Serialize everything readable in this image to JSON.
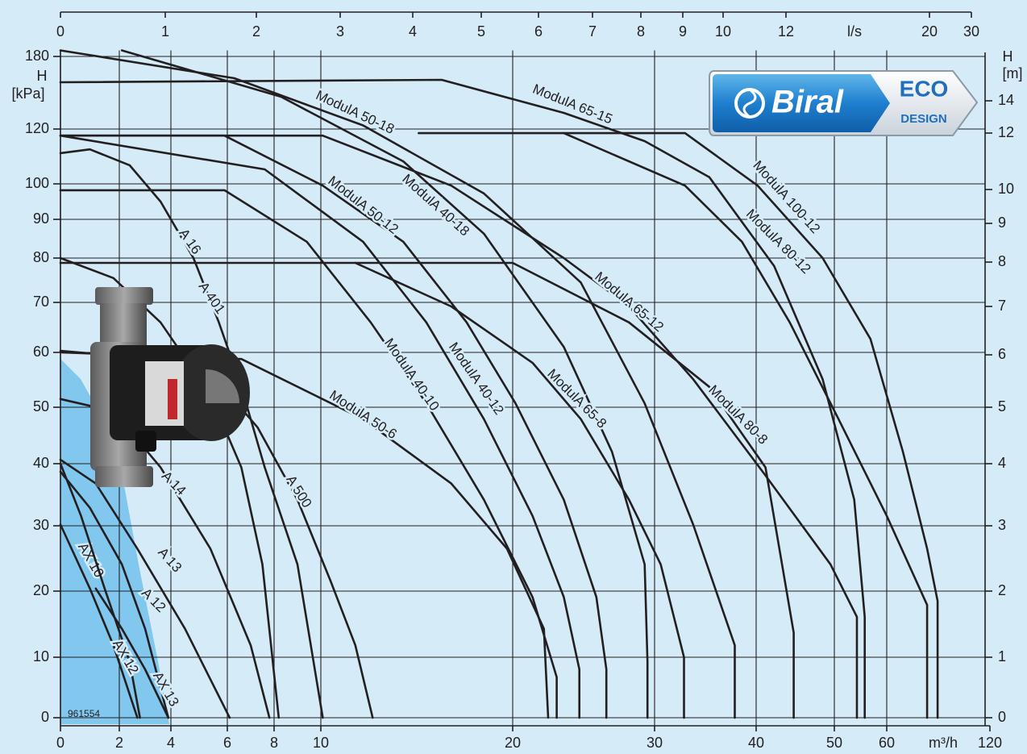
{
  "chart_data": {
    "type": "line",
    "color": "#231f20",
    "grid": true,
    "x_label": "m³/h",
    "x2_label": "l/s",
    "y_label": [
      "H",
      "[kPa]"
    ],
    "y2_label": [
      "H",
      "[m]"
    ],
    "xlim": [
      0,
      120
    ],
    "xticks": [
      0,
      2,
      4,
      6,
      8,
      10,
      20,
      30,
      40,
      50,
      60,
      120
    ],
    "x2lim": [
      0,
      30
    ],
    "x2ticks": [
      0,
      1,
      2,
      3,
      4,
      5,
      6,
      7,
      8,
      9,
      10,
      12,
      20,
      30
    ],
    "ylim": [
      0,
      185
    ],
    "yticks": [
      0,
      10,
      20,
      30,
      40,
      50,
      60,
      70,
      80,
      90,
      100,
      120,
      180
    ],
    "y2lim": [
      0,
      17
    ],
    "y2ticks": [
      0,
      1,
      2,
      3,
      4,
      5,
      6,
      7,
      8,
      9,
      10,
      12,
      14
    ],
    "annotations": [
      "961554"
    ],
    "series": [
      {
        "name": "ModulA 50-18",
        "x": [
          0,
          6.3,
          12.2,
          18.5,
          24.8,
          29.3,
          33.8,
          37.9,
          37.9
        ],
        "y": [
          185,
          162,
          123,
          97.3,
          74.5,
          50.7,
          30.2,
          11.8,
          0
        ]
      },
      {
        "name": "ModulA 65-15",
        "x": [
          0,
          16.3,
          23.6,
          29.3,
          35.4,
          42.3,
          48.5,
          53.8,
          55.8,
          55.8
        ],
        "y": [
          158.7,
          160.7,
          133.3,
          115.6,
          102.4,
          78.2,
          55.1,
          34.2,
          16.1,
          0
        ]
      },
      {
        "name": "ModulA 100-12",
        "x": [
          15.1,
          33.0,
          40.2,
          48.5,
          56.9,
          69.4,
          83.5,
          89.6,
          89.6
        ],
        "y": [
          118.5,
          118.5,
          99.5,
          80,
          62.7,
          42.1,
          26.5,
          18.5,
          0
        ]
      },
      {
        "name": "ModulA 80-12",
        "x": [
          23.6,
          33.0,
          38.6,
          44.3,
          50.8,
          60,
          83.5,
          83.5
        ],
        "y": [
          118.5,
          99.5,
          84.2,
          66,
          47.9,
          31.6,
          17.9,
          0
        ]
      },
      {
        "name": "ModulA 65-12",
        "x": [
          0,
          10.1,
          16.8,
          23.6,
          28.2,
          33.8,
          41.2,
          49.5,
          54.3,
          54.3
        ],
        "y": [
          117.6,
          117.6,
          99.5,
          80,
          69.2,
          55.1,
          38.1,
          24.1,
          16.1,
          0
        ]
      },
      {
        "name": "ModulA 40-18",
        "x": [
          2.1,
          8.3,
          14.3,
          18.5,
          23.6,
          27.0,
          29.3,
          29.5,
          29.5
        ],
        "y": [
          185,
          146.7,
          108.2,
          86.3,
          61.1,
          42.1,
          24.1,
          9.3,
          0
        ]
      },
      {
        "name": "ModulA 50-12",
        "x": [
          0,
          5.9,
          10.1,
          14.3,
          17.6,
          20.2,
          23.6,
          25.9,
          26.6,
          26.6
        ],
        "y": [
          117.6,
          117.6,
          99.5,
          84.2,
          66,
          50.7,
          34.2,
          19.1,
          8,
          0
        ]
      },
      {
        "name": "ModulA 40-12",
        "x": [
          0,
          7.6,
          12.2,
          15.5,
          18.5,
          21.4,
          23.6,
          24.7,
          24.7
        ],
        "y": [
          117.6,
          105.3,
          84.2,
          66,
          47.9,
          31.6,
          19.1,
          8,
          0
        ]
      },
      {
        "name": "ModulA 40-10",
        "x": [
          0,
          5.9,
          9.4,
          12.6,
          15.5,
          18.5,
          21.4,
          23.1,
          23.1
        ],
        "y": [
          98.2,
          98.2,
          84.2,
          66,
          50.7,
          34.2,
          19.1,
          6.7,
          0
        ]
      },
      {
        "name": "ModulA 80-8",
        "x": [
          0,
          20,
          28.2,
          35.4,
          41.2,
          44.8,
          44.8
        ],
        "y": [
          78.9,
          78.9,
          66,
          53.7,
          39.4,
          13.7,
          0
        ]
      },
      {
        "name": "ModulA 65-8",
        "x": [
          11.8,
          16.8,
          21.4,
          24.8,
          28.2,
          30.6,
          32.9,
          32.9
        ],
        "y": [
          78.9,
          69.2,
          58.1,
          47.9,
          34.2,
          24.1,
          10,
          0
        ]
      },
      {
        "name": "ModulA 50-6",
        "x": [
          0,
          6.6,
          12.2,
          16.8,
          19.7,
          22.2,
          22.5
        ],
        "y": [
          60,
          58.8,
          47.9,
          36.8,
          26.5,
          14.3,
          0
        ]
      },
      {
        "name": "A 16",
        "x": [
          0,
          1.0,
          2.4,
          3.6,
          4.8,
          5.7,
          6.6,
          7.6,
          9.0,
          10.1
        ],
        "y": [
          111.2,
          112.6,
          106.8,
          95,
          80,
          66,
          53.7,
          39.4,
          24.1,
          0
        ]
      },
      {
        "name": "A 401",
        "x": [
          0,
          1.8,
          3.6,
          5.4,
          6.6,
          7.5,
          8.2
        ],
        "y": [
          80,
          75.5,
          66,
          52.2,
          39.4,
          24.1,
          0
        ]
      },
      {
        "name": "A 500",
        "x": [
          0,
          5.1,
          7.3,
          9.0,
          10.5,
          11.8,
          12.7
        ],
        "y": [
          60.3,
          58.1,
          46.4,
          34.2,
          21.6,
          11.8,
          0
        ]
      },
      {
        "name": "A 14",
        "x": [
          0,
          1.8,
          3.6,
          5.4,
          7.0,
          7.8
        ],
        "y": [
          51.5,
          49.3,
          39.4,
          26.5,
          11.8,
          0
        ]
      },
      {
        "name": "A 13",
        "x": [
          0,
          1.2,
          2.7,
          4.5,
          6.1
        ],
        "y": [
          40.7,
          36.8,
          26.5,
          14.3,
          0
        ]
      },
      {
        "name": "A 12",
        "x": [
          0,
          1.0,
          2.1,
          3.0,
          3.9
        ],
        "y": [
          38.7,
          32.9,
          24.1,
          14.3,
          0
        ]
      },
      {
        "name": "AX 10",
        "x": [
          0,
          1.0,
          1.8,
          2.7
        ],
        "y": [
          30.2,
          20.4,
          11.8,
          0
        ]
      },
      {
        "name": "AX 12",
        "x": [
          0,
          0.7,
          1.5,
          2.4,
          2.8
        ],
        "y": [
          40,
          31.6,
          20.4,
          9.3,
          0
        ]
      },
      {
        "name": "AX 13",
        "x": [
          1.2,
          2.1,
          3.0,
          3.9
        ],
        "y": [
          20.4,
          14.3,
          8,
          0
        ]
      }
    ]
  },
  "logo": {
    "brand": "Biral",
    "eco": "ECO",
    "design": "DESIGN"
  }
}
